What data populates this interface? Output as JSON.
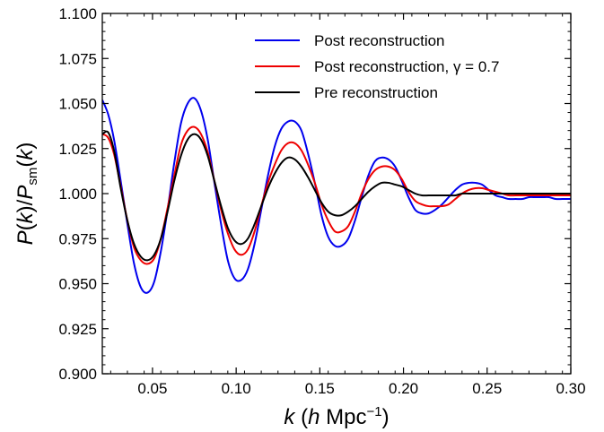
{
  "chart_data": {
    "type": "line",
    "xlabel": "k (h Mpc⁻¹)",
    "ylabel": "P(k)/Psm(k)",
    "xlim": [
      0.02,
      0.3
    ],
    "ylim": [
      0.9,
      1.1
    ],
    "xticks": [
      "0.05",
      "0.10",
      "0.15",
      "0.20",
      "0.25",
      "0.30"
    ],
    "yticks": [
      "0.900",
      "0.925",
      "0.950",
      "0.975",
      "1.000",
      "1.025",
      "1.050",
      "1.075",
      "1.100"
    ],
    "legend_position": "top-right",
    "grid": false,
    "series": [
      {
        "name": "Post reconstruction",
        "color": "#0000ee",
        "x": [
          0.02,
          0.0235,
          0.027,
          0.031,
          0.035,
          0.039,
          0.043,
          0.047,
          0.051,
          0.055,
          0.059,
          0.063,
          0.067,
          0.071,
          0.075,
          0.079,
          0.083,
          0.087,
          0.091,
          0.095,
          0.099,
          0.103,
          0.107,
          0.111,
          0.115,
          0.119,
          0.123,
          0.127,
          0.131,
          0.135,
          0.139,
          0.143,
          0.147,
          0.151,
          0.155,
          0.159,
          0.163,
          0.167,
          0.171,
          0.175,
          0.179,
          0.183,
          0.187,
          0.191,
          0.195,
          0.199,
          0.203,
          0.207,
          0.211,
          0.215,
          0.219,
          0.223,
          0.227,
          0.231,
          0.235,
          0.239,
          0.243,
          0.247,
          0.251,
          0.255,
          0.259,
          0.263,
          0.267,
          0.271,
          0.275,
          0.279,
          0.283,
          0.287,
          0.291,
          0.295,
          0.3
        ],
        "y": [
          1.052,
          1.044,
          1.03,
          1.007,
          0.983,
          0.961,
          0.948,
          0.945,
          0.951,
          0.968,
          0.991,
          1.017,
          1.039,
          1.05,
          1.053,
          1.046,
          1.03,
          1.006,
          0.983,
          0.963,
          0.953,
          0.952,
          0.958,
          0.972,
          0.991,
          1.01,
          1.026,
          1.036,
          1.04,
          1.04,
          1.035,
          1.022,
          1.006,
          0.988,
          0.976,
          0.971,
          0.971,
          0.975,
          0.985,
          0.998,
          1.01,
          1.018,
          1.02,
          1.019,
          1.015,
          1.007,
          0.998,
          0.991,
          0.989,
          0.989,
          0.991,
          0.994,
          0.998,
          1.002,
          1.005,
          1.006,
          1.006,
          1.005,
          1.002,
          0.999,
          0.998,
          0.997,
          0.997,
          0.997,
          0.998,
          0.998,
          0.998,
          0.998,
          0.997,
          0.997,
          0.997
        ]
      },
      {
        "name": "Post reconstruction, γ = 0.7",
        "color": "#ee0000",
        "x": [
          0.02,
          0.0235,
          0.027,
          0.031,
          0.035,
          0.039,
          0.043,
          0.047,
          0.051,
          0.055,
          0.059,
          0.063,
          0.067,
          0.071,
          0.075,
          0.079,
          0.083,
          0.087,
          0.091,
          0.095,
          0.099,
          0.103,
          0.107,
          0.111,
          0.115,
          0.119,
          0.123,
          0.127,
          0.131,
          0.135,
          0.139,
          0.143,
          0.147,
          0.151,
          0.155,
          0.159,
          0.163,
          0.167,
          0.171,
          0.175,
          0.179,
          0.183,
          0.187,
          0.191,
          0.195,
          0.199,
          0.203,
          0.207,
          0.211,
          0.215,
          0.219,
          0.223,
          0.227,
          0.231,
          0.235,
          0.239,
          0.243,
          0.247,
          0.251,
          0.255,
          0.259,
          0.263,
          0.267,
          0.271,
          0.275,
          0.279,
          0.283,
          0.287,
          0.291,
          0.295,
          0.3
        ],
        "y": [
          1.033,
          1.031,
          1.022,
          1.004,
          0.985,
          0.97,
          0.963,
          0.961,
          0.964,
          0.975,
          0.992,
          1.01,
          1.027,
          1.035,
          1.037,
          1.033,
          1.023,
          1.007,
          0.991,
          0.978,
          0.969,
          0.966,
          0.969,
          0.979,
          0.993,
          1.006,
          1.016,
          1.024,
          1.028,
          1.028,
          1.024,
          1.016,
          1.006,
          0.994,
          0.985,
          0.979,
          0.979,
          0.982,
          0.99,
          1.0,
          1.008,
          1.013,
          1.015,
          1.015,
          1.013,
          1.008,
          1.001,
          0.996,
          0.994,
          0.993,
          0.993,
          0.993,
          0.994,
          0.997,
          1.0,
          1.002,
          1.003,
          1.003,
          1.002,
          1.001,
          1.0,
          0.999,
          0.999,
          0.999,
          0.999,
          0.999,
          0.999,
          0.999,
          0.999,
          0.999,
          0.999
        ]
      },
      {
        "name": "Pre reconstruction",
        "color": "#000000",
        "x": [
          0.02,
          0.0235,
          0.027,
          0.031,
          0.035,
          0.039,
          0.043,
          0.047,
          0.051,
          0.055,
          0.059,
          0.063,
          0.067,
          0.071,
          0.075,
          0.079,
          0.083,
          0.087,
          0.091,
          0.095,
          0.099,
          0.103,
          0.107,
          0.111,
          0.115,
          0.119,
          0.123,
          0.127,
          0.131,
          0.135,
          0.139,
          0.143,
          0.147,
          0.151,
          0.155,
          0.159,
          0.163,
          0.167,
          0.171,
          0.175,
          0.179,
          0.183,
          0.187,
          0.191,
          0.195,
          0.199,
          0.203,
          0.207,
          0.211,
          0.215,
          0.219,
          0.223,
          0.227,
          0.231,
          0.235,
          0.239,
          0.243,
          0.247,
          0.251,
          0.255,
          0.259,
          0.263,
          0.267,
          0.271,
          0.275,
          0.279,
          0.283,
          0.287,
          0.291,
          0.295,
          0.3
        ],
        "y": [
          1.033,
          1.034,
          1.024,
          1.003,
          0.985,
          0.972,
          0.965,
          0.963,
          0.966,
          0.975,
          0.99,
          1.007,
          1.021,
          1.03,
          1.033,
          1.03,
          1.021,
          1.007,
          0.993,
          0.981,
          0.974,
          0.972,
          0.975,
          0.983,
          0.993,
          1.003,
          1.011,
          1.017,
          1.02,
          1.019,
          1.015,
          1.009,
          1.002,
          0.995,
          0.99,
          0.988,
          0.988,
          0.99,
          0.993,
          0.997,
          1.001,
          1.004,
          1.006,
          1.006,
          1.005,
          1.004,
          1.002,
          1.0,
          0.999,
          0.999,
          0.999,
          0.999,
          0.999,
          0.999,
          1.0,
          1.0,
          1.0,
          1.0,
          1.0,
          1.0,
          1.0,
          1.0,
          1.0,
          1.0,
          1.0,
          1.0,
          1.0,
          1.0,
          1.0,
          1.0,
          1.0
        ]
      }
    ]
  }
}
